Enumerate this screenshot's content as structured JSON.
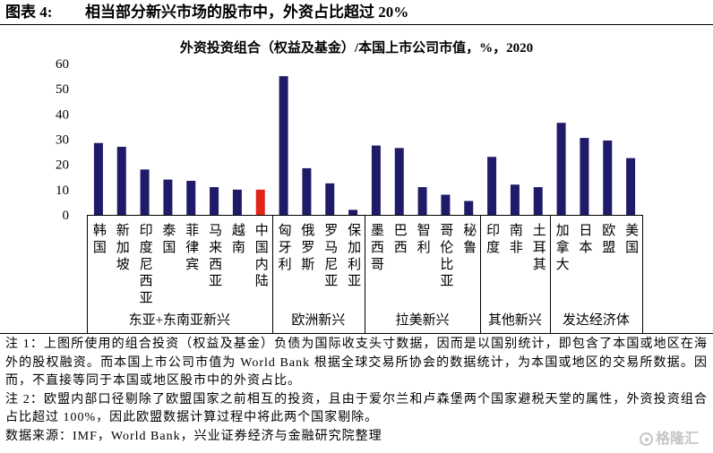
{
  "header": {
    "figure_label": "图表 4:",
    "title": "相当部分新兴市场的股市中，外资占比超过 20%"
  },
  "chart_data": {
    "type": "bar",
    "title": "外资投资组合（权益及基金）/本国上市公司市值，%，2020",
    "ylim": [
      0,
      60
    ],
    "yticks": [
      0,
      10,
      20,
      30,
      40,
      50,
      60
    ],
    "grid": false,
    "legend": "none",
    "bar_color": "#1f1b69",
    "groups": [
      {
        "label": "东亚+东南亚新兴",
        "categories": [
          "韩国",
          "新加坡",
          "印度尼西亚",
          "泰国",
          "菲律宾",
          "马来西亚",
          "越南",
          "中国内陆"
        ],
        "values": [
          28.5,
          27,
          18,
          14,
          13.5,
          11,
          10,
          10
        ],
        "colors": [
          "#1f1b69",
          "#1f1b69",
          "#1f1b69",
          "#1f1b69",
          "#1f1b69",
          "#1f1b69",
          "#1f1b69",
          "#e2231a"
        ]
      },
      {
        "label": "欧洲新兴",
        "categories": [
          "匈牙利",
          "俄罗斯",
          "罗马尼亚",
          "保加利亚"
        ],
        "values": [
          55,
          18.5,
          12.5,
          2
        ]
      },
      {
        "label": "拉美新兴",
        "categories": [
          "墨西哥",
          "巴西",
          "智利",
          "哥伦比亚",
          "秘鲁"
        ],
        "values": [
          27.5,
          26.5,
          11,
          8,
          5.5
        ]
      },
      {
        "label": "其他新兴",
        "categories": [
          "印度",
          "南非",
          "土耳其"
        ],
        "values": [
          23,
          12,
          11
        ]
      },
      {
        "label": "发达经济体",
        "categories": [
          "加拿大",
          "日本",
          "欧盟",
          "美国"
        ],
        "values": [
          36.5,
          30.5,
          29.5,
          22.5
        ]
      }
    ]
  },
  "notes": [
    "注 1：上图所使用的组合投资（权益及基金）负债为国际收支头寸数据，因而是以国别统计，即包含了本国或地区在海外的股权融资。而本国上市公司市值为 World Bank 根据全球交易所协会的数据统计，为本国或地区的交易所数据。因而，不直接等同于本国或地区股市中的外资占比。",
    "注 2：欧盟内部口径剔除了欧盟国家之前相互的投资，且由于爱尔兰和卢森堡两个国家避税天堂的属性，外资投资组合占比超过 100%，因此欧盟数据计算过程中将此两个国家剔除。"
  ],
  "source": "数据来源：IMF，World Bank，兴业证券经济与金融研究院整理",
  "watermark": {
    "icon": "gelonghui-logo-icon",
    "text": "格隆汇"
  }
}
